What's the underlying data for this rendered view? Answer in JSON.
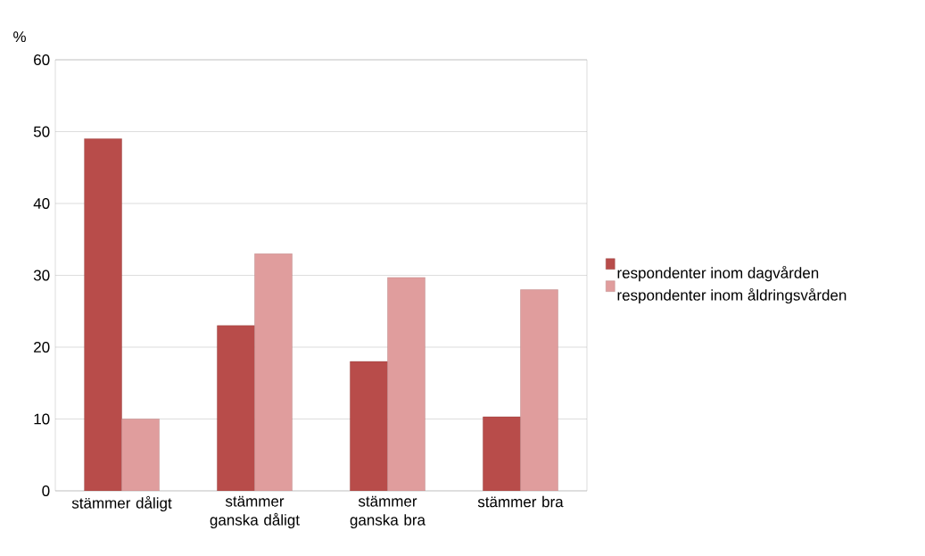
{
  "chart_data": {
    "type": "bar",
    "ylabel": "%",
    "categories": [
      "stämmer dåligt",
      "stämmer ganska dåligt",
      "stämmer ganska bra",
      "stämmer bra"
    ],
    "series": [
      {
        "name": "respondenter inom dagvården",
        "color": "#b84c4a",
        "values": [
          49,
          23,
          18,
          10.3
        ]
      },
      {
        "name": "respondenter inom åldringsvården",
        "color": "#e09d9d",
        "values": [
          10,
          33,
          29.7,
          28
        ]
      }
    ],
    "ylim": [
      0,
      60
    ],
    "yticks": [
      0,
      10,
      20,
      30,
      40,
      50,
      60
    ],
    "grid": "y",
    "legend": "right"
  }
}
